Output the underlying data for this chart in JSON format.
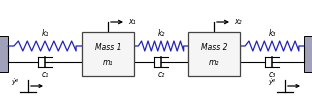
{
  "bg_color": "#ffffff",
  "wall_color": "#a0a0bb",
  "spring_color": "#2222bb",
  "line_color": "#000000",
  "mass_color": "#f5f5f5",
  "mass_edge_color": "#444444",
  "figsize": [
    3.12,
    1.08
  ],
  "dpi": 100,
  "labels": {
    "k1": "k₁",
    "k2": "k₂",
    "k3": "k₃",
    "c1": "c₁",
    "c2": "c₂",
    "c3": "c₃",
    "m1": "m₁",
    "m2": "m₂",
    "mass1": "Mass 1",
    "mass2": "Mass 2",
    "x1": "x₁",
    "x2": "x₂",
    "yg": "ẏᵍ"
  }
}
